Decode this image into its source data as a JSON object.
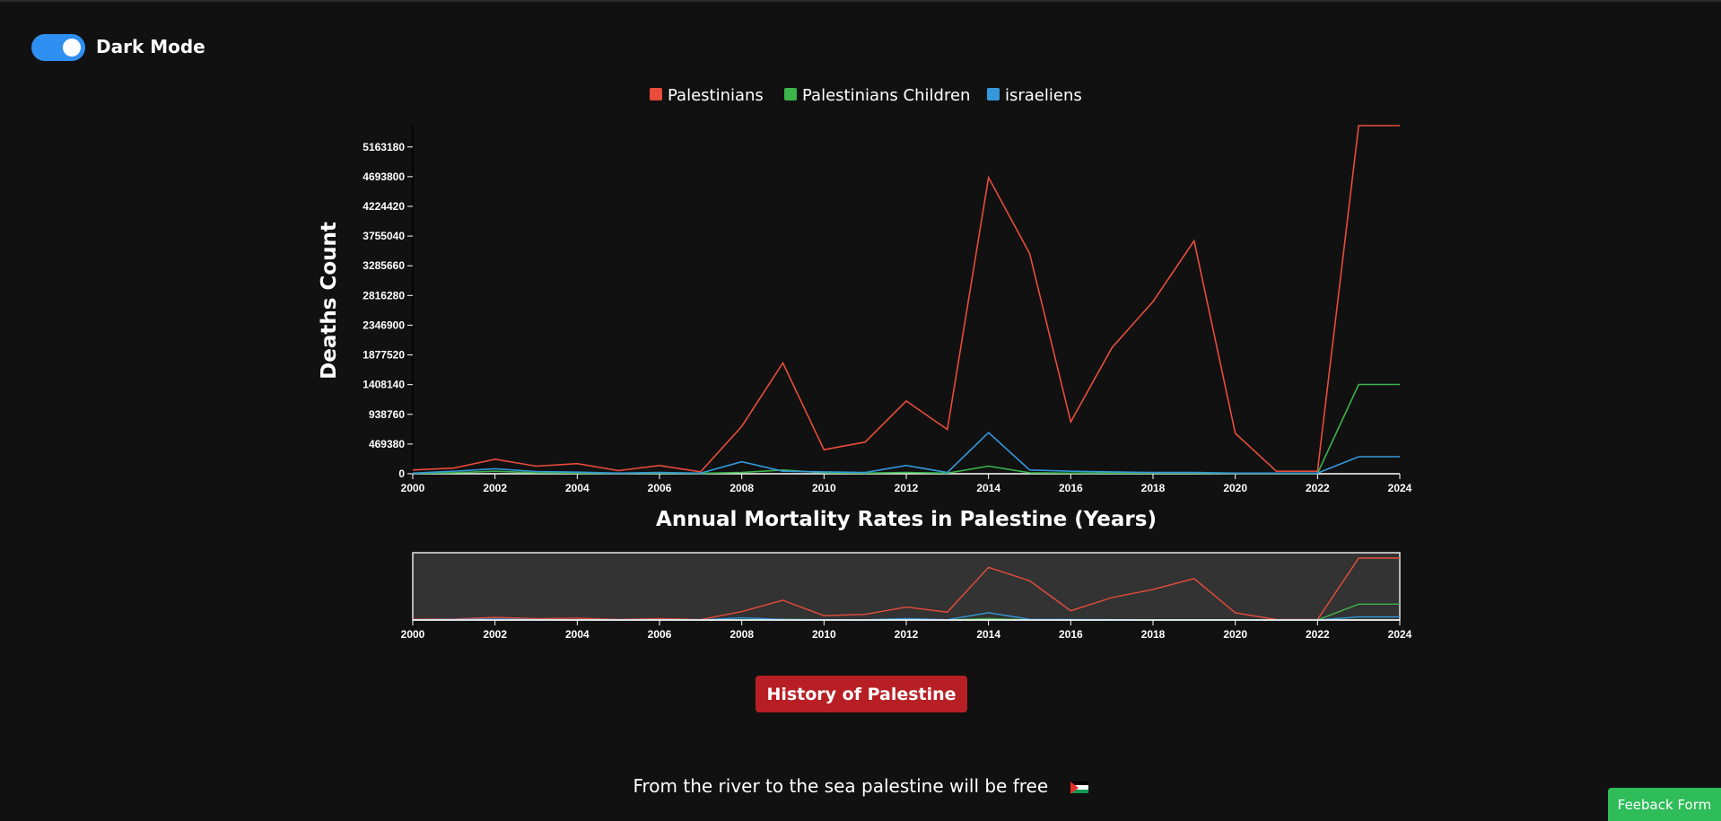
{
  "toggle": {
    "label": "Dark Mode",
    "state": "on"
  },
  "history_button": "History of Palestine",
  "slogan": "From the river to the sea palestine will be free",
  "feedback_button": "Feeback Form",
  "colors": {
    "background": "#111111",
    "accent": "#2f8ff0",
    "button": "#b81f25",
    "feedback": "#2ebd59"
  },
  "chart_data": {
    "type": "line",
    "xlabel": "Annual Mortality Rates in Palestine (Years)",
    "ylabel": "Deaths Count",
    "x": [
      2000,
      2001,
      2002,
      2003,
      2004,
      2005,
      2006,
      2007,
      2008,
      2009,
      2010,
      2011,
      2012,
      2013,
      2014,
      2015,
      2016,
      2017,
      2018,
      2019,
      2020,
      2021,
      2022,
      2023,
      2024
    ],
    "xticks": [
      2000,
      2002,
      2004,
      2006,
      2008,
      2010,
      2012,
      2014,
      2016,
      2018,
      2020,
      2022,
      2024
    ],
    "yticks": [
      0,
      469380,
      938760,
      1408140,
      1877520,
      2346900,
      2816280,
      3285660,
      3755040,
      4224420,
      4693800,
      5163180
    ],
    "ylim": [
      0,
      5500000
    ],
    "grid": false,
    "legend_position": "top-center",
    "brush_xticks": [
      2000,
      2002,
      2004,
      2006,
      2008,
      2010,
      2012,
      2014,
      2016,
      2018,
      2020,
      2022,
      2024
    ],
    "series": [
      {
        "name": "Palestinians",
        "color": "#e74c3c",
        "values": [
          60000,
          90000,
          230000,
          120000,
          160000,
          50000,
          130000,
          30000,
          750000,
          1750000,
          380000,
          500000,
          1150000,
          700000,
          4680000,
          3480000,
          820000,
          1990000,
          2720000,
          3680000,
          640000,
          40000,
          40000,
          5500000,
          5500000
        ]
      },
      {
        "name": "Palestinians Children",
        "color": "#3cb44b",
        "values": [
          5000,
          15000,
          40000,
          15000,
          10000,
          5000,
          10000,
          5000,
          20000,
          60000,
          15000,
          10000,
          20000,
          10000,
          120000,
          15000,
          10000,
          10000,
          10000,
          10000,
          5000,
          5000,
          5000,
          1410000,
          1410000
        ]
      },
      {
        "name": "israeliens",
        "color": "#3498db",
        "values": [
          10000,
          40000,
          80000,
          35000,
          25000,
          10000,
          20000,
          10000,
          190000,
          40000,
          30000,
          20000,
          130000,
          20000,
          650000,
          60000,
          40000,
          30000,
          20000,
          20000,
          10000,
          10000,
          10000,
          270000,
          270000
        ]
      }
    ]
  }
}
